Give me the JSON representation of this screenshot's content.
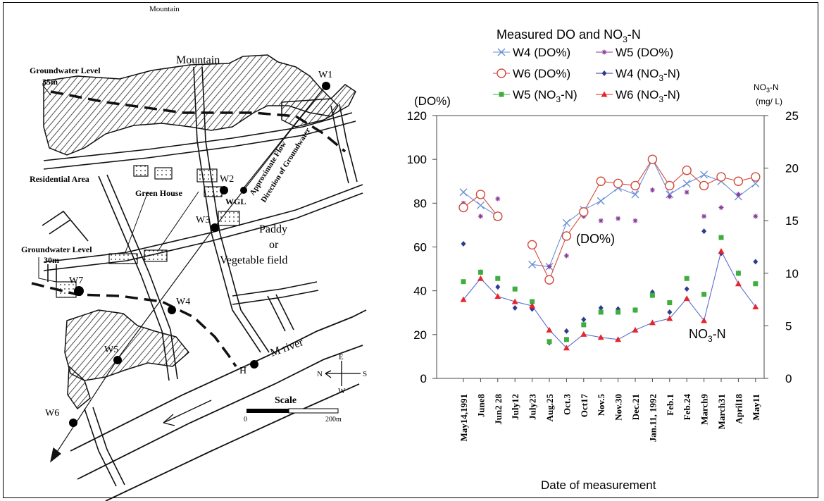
{
  "map": {
    "top_cut_label": "Mountain",
    "mountain": "Mountain",
    "gw_level_35": [
      "Groundwater Level",
      "35m"
    ],
    "gw_level_30": [
      "Groundwater Level",
      "30m"
    ],
    "residential": "Residential Area",
    "green_house": "Green House",
    "wgl": "WGL",
    "paddy": [
      "Paddy",
      "or",
      "Vegetable field"
    ],
    "flow_direction": [
      "Approximate Flow",
      "Direction of Groundwater"
    ],
    "wells": [
      "W1",
      "W2",
      "W3",
      "W4",
      "W5",
      "W6",
      "W7",
      "H"
    ],
    "river": "M river",
    "compass": {
      "n": "N",
      "e": "E",
      "s": "S",
      "w": "W"
    },
    "scale": {
      "title": "Scale",
      "start": "0",
      "end": "200m"
    }
  },
  "chart_data": {
    "type": "line",
    "title": "Measured DO and NO3-N",
    "xlabel": "Date of measurement",
    "ylabel_left": "(DO%)",
    "ylabel_right": "NO3-N (mg/L)",
    "ylim_left": [
      0,
      120
    ],
    "ylim_right": [
      0,
      25
    ],
    "yticks_left": [
      "0",
      "20",
      "40",
      "60",
      "80",
      "100",
      "120"
    ],
    "yticks_right": [
      "0",
      "5",
      "10",
      "15",
      "20",
      "25"
    ],
    "categories": [
      "May14,1991",
      "June8",
      "Jun2 28",
      "July12",
      "July23",
      "Aug.25",
      "Oct.3",
      "Oct17",
      "Nov.5",
      "Nov.30",
      "Dec.21",
      "Jan.11, 1992",
      "Feb.1",
      "Feb.24",
      "March9",
      "March31",
      "April18",
      "May11"
    ],
    "annotations": [
      "(DO%)",
      "NO3-N"
    ],
    "legend_placement": "top",
    "series": [
      {
        "name": "W4 (DO%)",
        "axis": "left",
        "color": "#6b8fd6",
        "marker": "x",
        "values": [
          85,
          79,
          74,
          null,
          52,
          51,
          71,
          77,
          81,
          87,
          84,
          100,
          84,
          89,
          93,
          90,
          83,
          89
        ]
      },
      {
        "name": "W5 (DO%)",
        "axis": "left",
        "color": "#8a3b9a",
        "marker": "star",
        "values": [
          80,
          74,
          82,
          null,
          62,
          51,
          56,
          74,
          72,
          73,
          72,
          86,
          83,
          85,
          74,
          78,
          84,
          74
        ]
      },
      {
        "name": "W6 (DO%)",
        "axis": "left",
        "color": "#d14a3a",
        "marker": "circle",
        "values": [
          78,
          84,
          74,
          null,
          61,
          45,
          65,
          76,
          90,
          89,
          88,
          100,
          88,
          95,
          88,
          92,
          90,
          92
        ]
      },
      {
        "name": "W4 (NO3-N)",
        "axis": "right",
        "color": "#2f3b8f",
        "marker": "diamond",
        "values": [
          12.8,
          10.1,
          8.7,
          6.7,
          6.6,
          3.4,
          4.5,
          5.6,
          6.7,
          6.6,
          6.5,
          8.2,
          6.3,
          8.5,
          14.0,
          11.9,
          10.0,
          11.1
        ]
      },
      {
        "name": "W5 (NO3-N)",
        "axis": "right",
        "color": "#3fae3f",
        "marker": "square",
        "values": [
          9.2,
          10.1,
          9.5,
          8.5,
          7.3,
          3.5,
          3.7,
          5.1,
          6.3,
          6.3,
          6.5,
          7.9,
          7.2,
          9.5,
          8.0,
          13.4,
          10.0,
          9.0
        ]
      },
      {
        "name": "W6 (NO3-N)",
        "axis": "right",
        "color": "#e8252a",
        "marker": "triangle",
        "values": [
          7.5,
          9.5,
          7.8,
          7.3,
          6.9,
          4.6,
          2.9,
          4.2,
          3.9,
          3.7,
          4.6,
          5.3,
          5.7,
          7.6,
          5.5,
          12.1,
          9.0,
          6.8
        ]
      }
    ]
  }
}
